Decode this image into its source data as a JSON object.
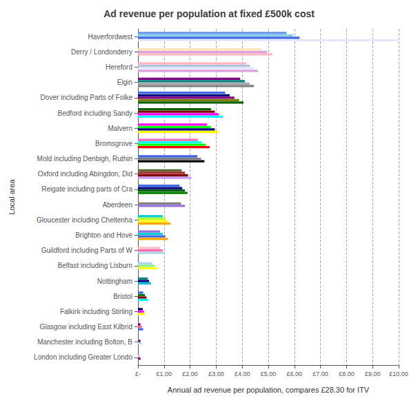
{
  "chart_data": {
    "type": "bar",
    "orientation": "horizontal",
    "title": "Ad revenue per population at fixed £500k cost",
    "xlabel": "Annual ad revenue per population, compares £28.30 for ITV",
    "ylabel": "Local area",
    "xlim": [
      0,
      10
    ],
    "xticks": [
      {
        "value": 0,
        "label": "£-"
      },
      {
        "value": 1,
        "label": "£1.00"
      },
      {
        "value": 2,
        "label": "£2.00"
      },
      {
        "value": 3,
        "label": "£3.00"
      },
      {
        "value": 4,
        "label": "£4.00"
      },
      {
        "value": 5,
        "label": "£5.00"
      },
      {
        "value": 6,
        "label": "£6.00"
      },
      {
        "value": 7,
        "label": "£7.00"
      },
      {
        "value": 8,
        "label": "£8.00"
      },
      {
        "value": 9,
        "label": "£9.00"
      },
      {
        "value": 10,
        "label": "£10.00"
      }
    ],
    "grid": true,
    "categories": [
      "London including Greater Londo",
      "Manchester including Bolton, B",
      "Glasgow including East Kilbrid",
      "Falkirk including Stirling",
      "Bristol",
      "Nottingham",
      "Belfast including Lisburn",
      "Guildford including Parts of W",
      "Brighton and Hove",
      "Gloucester including Cheltenha",
      "Aberdeen",
      "Reigate including parts of Cra",
      "Oxford including Abingdon, Did",
      "Mold including Denbigh, Ruthin",
      "Bromsgrove",
      "Malvern",
      "Bedford including Sandy",
      "Dover including Parts of Folke",
      "Elgin",
      "Hereford",
      "Derry / Londonderry",
      "Haverfordwest"
    ],
    "values": [
      [
        0.1,
        0.07
      ],
      [
        0.14,
        0.1
      ],
      [
        0.2,
        0.15,
        0.1
      ],
      [
        0.28,
        0.23,
        0.18
      ],
      [
        0.4,
        0.33,
        0.27,
        0.2
      ],
      [
        0.5,
        0.43,
        0.37
      ],
      [
        0.75,
        0.65,
        0.55
      ],
      [
        1.05,
        0.95,
        0.85
      ],
      [
        1.15,
        1.05,
        0.95,
        0.85
      ],
      [
        1.25,
        1.15,
        1.05,
        0.95
      ],
      [
        1.8,
        1.65
      ],
      [
        1.9,
        1.8,
        1.7,
        1.6
      ],
      [
        2.05,
        1.92,
        1.8,
        1.68
      ],
      [
        2.55,
        2.42,
        2.28
      ],
      [
        2.75,
        2.6,
        2.45,
        2.3
      ],
      [
        3.1,
        2.95,
        2.8,
        2.65
      ],
      [
        3.25,
        3.1,
        2.95,
        2.8
      ],
      [
        4.05,
        3.88,
        3.7,
        3.52,
        3.35
      ],
      [
        4.45,
        4.28,
        4.1,
        3.92
      ],
      [
        4.6,
        4.45,
        4.3,
        4.15
      ],
      [
        5.15,
        4.95,
        4.72
      ],
      [
        10.0,
        6.2,
        5.95,
        5.7
      ]
    ],
    "colors": [
      [
        "#800080",
        "#ffb6c1"
      ],
      [
        "#add8e6",
        "#800080"
      ],
      [
        "#4169e1",
        "#ff6699",
        "#800080"
      ],
      [
        "#ffff00",
        "#ff00ff",
        "#000080"
      ],
      [
        "#00ffff",
        "#800000",
        "#008000",
        "#4169e1"
      ],
      [
        "#00bcd4",
        "#000080",
        "#008080"
      ],
      [
        "#ffff00",
        "#90ee90",
        "#add8e6"
      ],
      [
        "#add8e6",
        "#ff69b4",
        "#ffb6c1"
      ],
      [
        "#ffa500",
        "#4169e1",
        "#00ced1",
        "#9370db"
      ],
      [
        "#ffa500",
        "#ffff00",
        "#adff2f",
        "#00ced1"
      ],
      [
        "#9370db",
        "#808080"
      ],
      [
        "#008000",
        "#006400",
        "#000080",
        "#4169e1"
      ],
      [
        "#cc99ff",
        "#800000",
        "#a52a2a",
        "#556b2f"
      ],
      [
        "#000000",
        "#808080",
        "#4169e1"
      ],
      [
        "#ff0000",
        "#00ff00",
        "#00ffff",
        "#ff69b4"
      ],
      [
        "#ffff00",
        "#000080",
        "#00ff00",
        "#ff00ff"
      ],
      [
        "#00ffff",
        "#ff00ff",
        "#800000",
        "#006400"
      ],
      [
        "#006400",
        "#808000",
        "#800080",
        "#000080",
        "#4169e1"
      ],
      [
        "#808080",
        "#a9a9a9",
        "#008080",
        "#800080"
      ],
      [
        "#dda0dd",
        "#e6e6fa",
        "#b0c4de",
        "#ffb6c1"
      ],
      [
        "#ffb6c1",
        "#dda0dd",
        "#ffe4b5"
      ],
      [
        "#e6e6fa",
        "#4169e1",
        "#87ceeb",
        "#6495ed"
      ]
    ]
  }
}
